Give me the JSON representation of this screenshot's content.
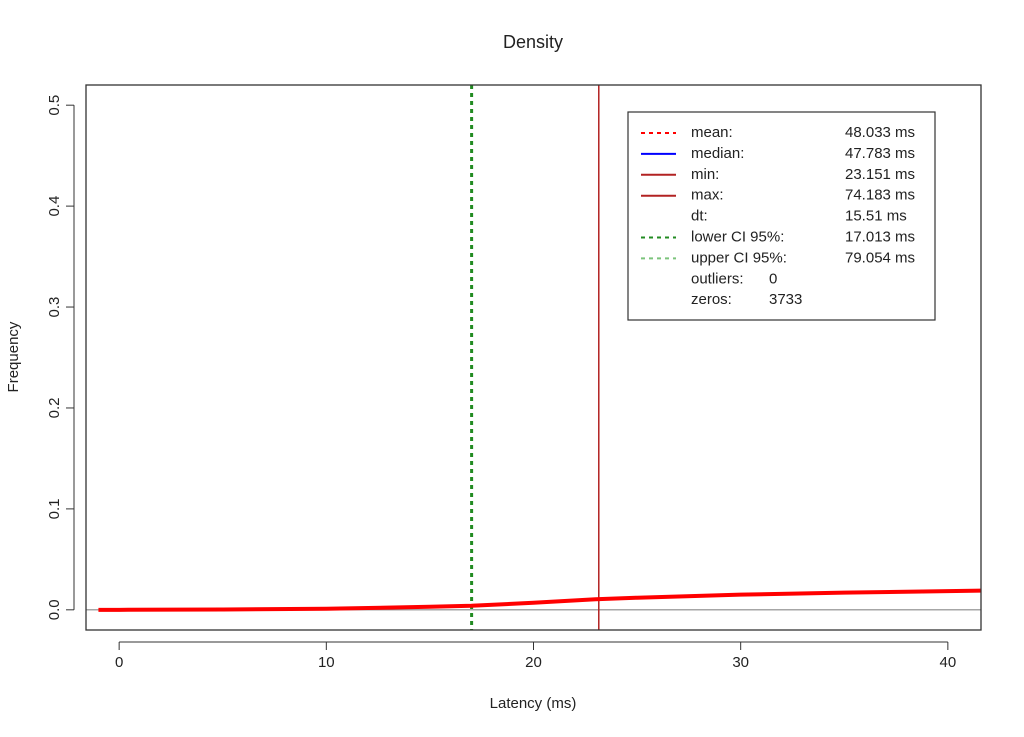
{
  "chart_data": {
    "type": "line",
    "title": "Density",
    "x_label": "Latency (ms)",
    "y_label": "Frequency",
    "xlim": [
      -1.6,
      41.6
    ],
    "ylim": [
      -0.02,
      0.52
    ],
    "xticks": [
      0,
      10,
      20,
      30,
      40
    ],
    "yticks": [
      {
        "value": 0,
        "label": "0.0"
      },
      0.1,
      0.2,
      0.3,
      0.4,
      0.5
    ],
    "baseline": true,
    "series": [
      {
        "color": "#ff0000",
        "x": [
          -1,
          0,
          5,
          10,
          15,
          17,
          20,
          23,
          25,
          30,
          35,
          40,
          41.6
        ],
        "values": [
          0,
          0,
          0.0003,
          0.001,
          0.003,
          0.004,
          0.007,
          0.0105,
          0.012,
          0.015,
          0.017,
          0.0185,
          0.019
        ]
      }
    ],
    "legend": [
      {
        "name": "mean:",
        "value": 48.033,
        "label": "48.033 ms",
        "color": "#ff0000",
        "dash": "dotted"
      },
      {
        "name": "median:",
        "value": 47.783,
        "label": "47.783 ms",
        "color": "#0000ff",
        "dash": "solid"
      },
      {
        "name": "min:",
        "value": 23.151,
        "label": "23.151 ms",
        "color": "#b22222",
        "dash": "solid"
      },
      {
        "name": "max:",
        "value": 74.183,
        "label": "74.183 ms",
        "color": "#b22222",
        "dash": "solid"
      },
      {
        "name": "dt:",
        "value": 15.51,
        "label": "15.51 ms"
      },
      {
        "name": "lower CI 95%:",
        "value": 17.013,
        "label": "17.013 ms",
        "color": "#228b22",
        "dash": "dotted"
      },
      {
        "name": "upper CI 95%:",
        "value": 79.054,
        "label": "79.054 ms",
        "color": "#7cc47c",
        "dash": "dotted"
      },
      {
        "name": "outliers:",
        "value": 0
      },
      {
        "name": "zeros:",
        "value": 3733
      }
    ]
  }
}
